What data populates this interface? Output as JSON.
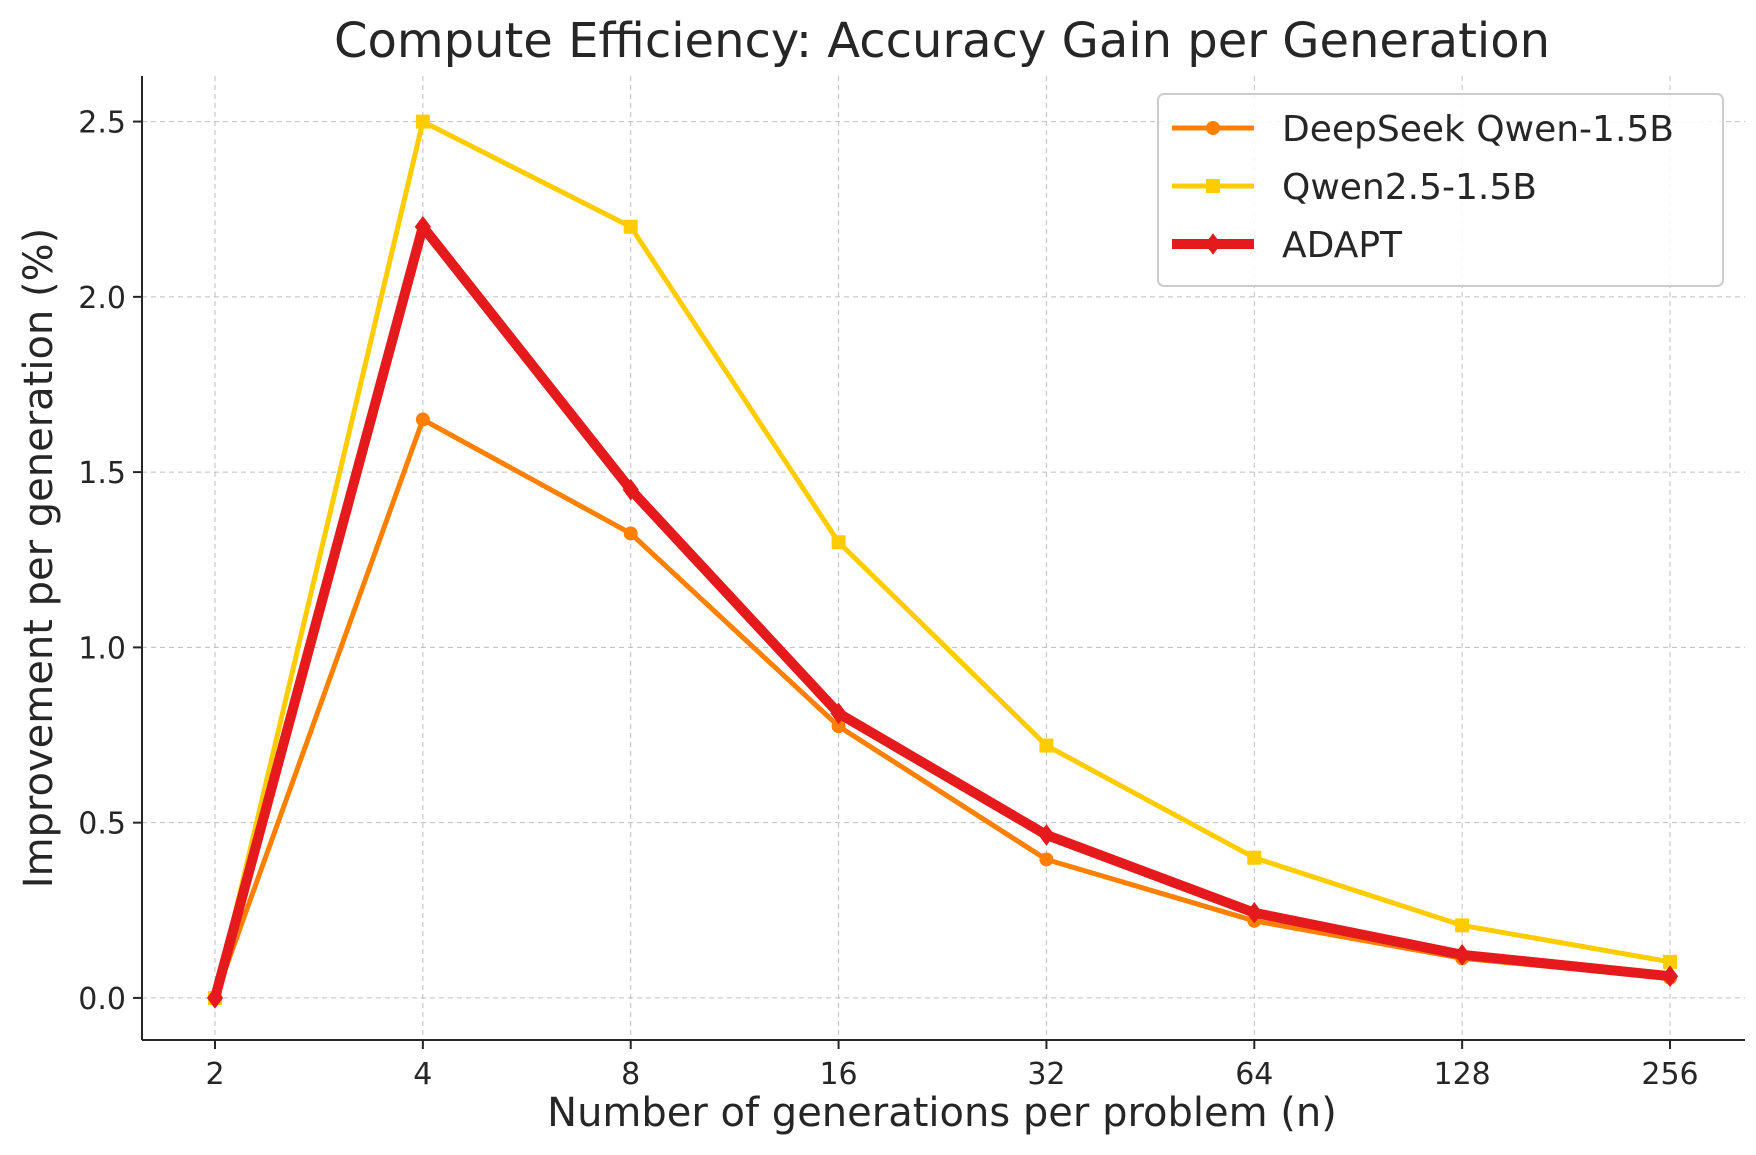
{
  "chart_data": {
    "type": "line",
    "title": "Compute Efficiency: Accuracy Gain per Generation",
    "xlabel": "Number of generations per problem (n)",
    "ylabel": "Improvement per generation (%)",
    "categories": [
      "2",
      "4",
      "8",
      "16",
      "32",
      "64",
      "128",
      "256"
    ],
    "y_ticks": [
      "0.0",
      "0.5",
      "1.0",
      "1.5",
      "2.0",
      "2.5"
    ],
    "ylim": [
      -0.12,
      2.63
    ],
    "grid": true,
    "legend_position": "top-right",
    "series": [
      {
        "name": "DeepSeek Qwen-1.5B",
        "color": "#ff8000",
        "marker": "circle",
        "values": [
          0.0,
          1.65,
          1.325,
          0.775,
          0.395,
          0.22,
          0.113,
          0.057
        ]
      },
      {
        "name": "Qwen2.5-1.5B",
        "color": "#ffcc00",
        "marker": "square",
        "values": [
          0.0,
          2.5,
          2.2,
          1.3,
          0.72,
          0.4,
          0.207,
          0.103
        ]
      },
      {
        "name": "ADAPT",
        "color": "#e41a1c",
        "marker": "diamond",
        "values": [
          0.0,
          2.2,
          1.45,
          0.812,
          0.465,
          0.243,
          0.123,
          0.062
        ]
      }
    ]
  }
}
